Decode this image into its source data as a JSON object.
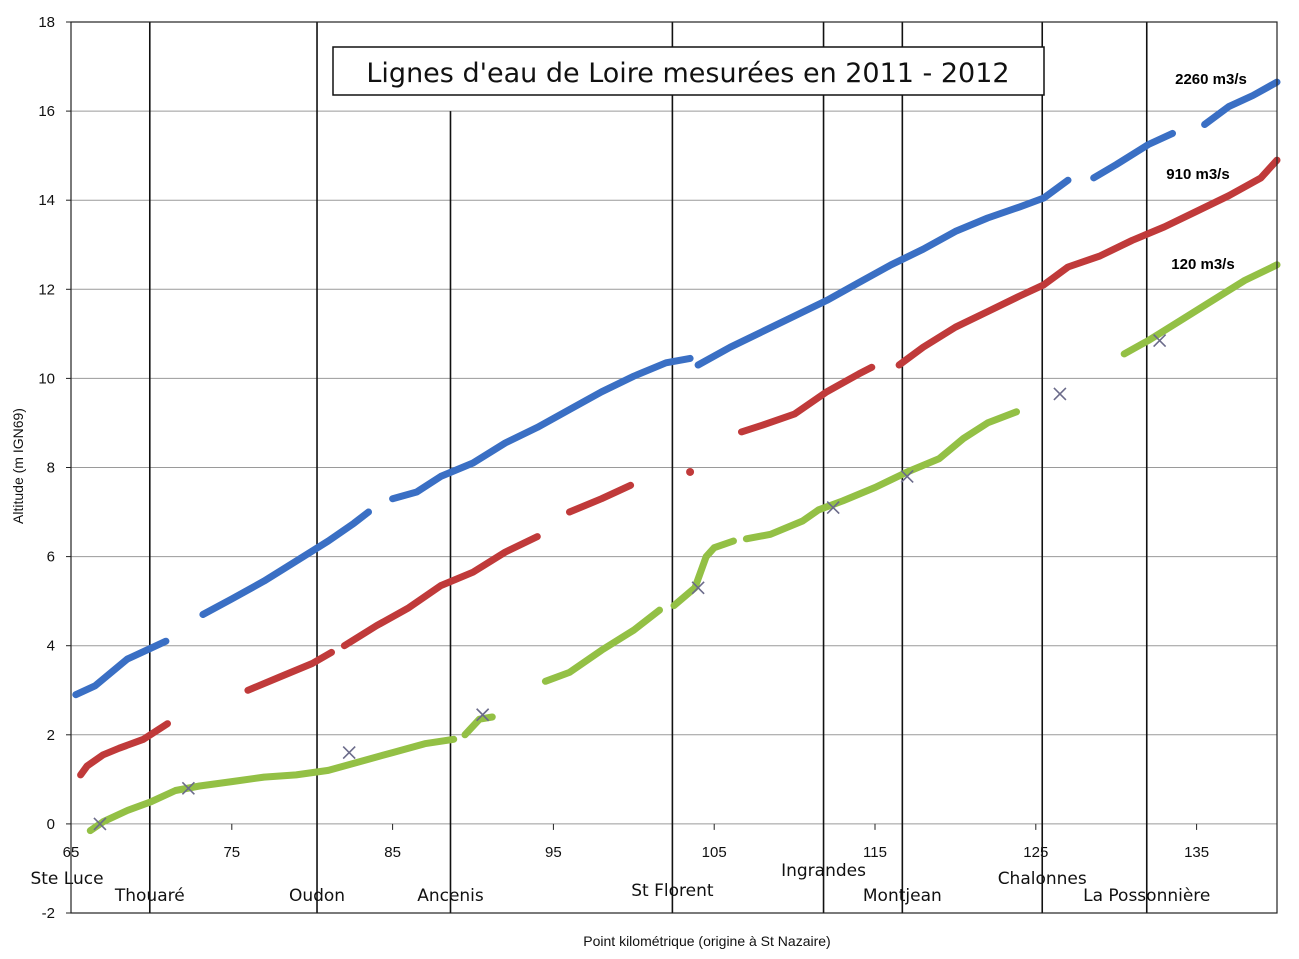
{
  "chart_data": {
    "type": "scatter",
    "title": "Lignes d'eau de Loire mesurées en 2011 - 2012",
    "xlabel": "Point kilométrique  (origine à St Nazaire)",
    "ylabel": "Altitude (m IGN69)",
    "xlim": [
      65,
      140
    ],
    "ylim": [
      -2,
      18
    ],
    "xticks": [
      "65",
      "75",
      "85",
      "95",
      "105",
      "115",
      "125",
      "135"
    ],
    "yticks": [
      "-2",
      "0",
      "2",
      "4",
      "6",
      "8",
      "10",
      "12",
      "14",
      "16",
      "18"
    ],
    "grid": "horizontal",
    "towns": [
      {
        "name": "Ste Luce",
        "x": 65,
        "level": 0
      },
      {
        "name": "Thouaré",
        "x": 69.9,
        "level": 1
      },
      {
        "name": "Oudon",
        "x": 80.3,
        "level": 1
      },
      {
        "name": "Ancenis",
        "x": 88.6,
        "level": 1
      },
      {
        "name": "St Florent",
        "x": 102.4,
        "level": 2
      },
      {
        "name": "Ingrandes",
        "x": 111.8,
        "level": 3
      },
      {
        "name": "Montjean",
        "x": 116.7,
        "level": 1
      },
      {
        "name": "Chalonnes",
        "x": 125.4,
        "level": 0
      },
      {
        "name": "La Possonnière",
        "x": 131.9,
        "level": 1
      }
    ],
    "series": [
      {
        "name": "2260 m3/s",
        "color": "#3a6fc4",
        "segments": [
          [
            [
              65.3,
              2.9
            ],
            [
              66.5,
              3.1
            ],
            [
              67.5,
              3.4
            ],
            [
              68.5,
              3.7
            ],
            [
              70,
              3.95
            ],
            [
              70.9,
              4.1
            ]
          ],
          [
            [
              73.2,
              4.7
            ],
            [
              75,
              5.05
            ],
            [
              77,
              5.45
            ],
            [
              79,
              5.9
            ],
            [
              81,
              6.35
            ],
            [
              82.6,
              6.75
            ],
            [
              83.5,
              7.0
            ]
          ],
          [
            [
              85,
              7.3
            ],
            [
              86.5,
              7.45
            ],
            [
              88,
              7.8
            ],
            [
              90,
              8.1
            ],
            [
              92,
              8.55
            ],
            [
              94,
              8.9
            ],
            [
              96,
              9.3
            ],
            [
              98,
              9.7
            ],
            [
              100,
              10.05
            ],
            [
              102,
              10.35
            ],
            [
              103.5,
              10.45
            ]
          ],
          [
            [
              104,
              10.3
            ],
            [
              106,
              10.7
            ],
            [
              108,
              11.05
            ],
            [
              110,
              11.4
            ],
            [
              112,
              11.75
            ],
            [
              114,
              12.15
            ],
            [
              116,
              12.55
            ],
            [
              118,
              12.9
            ],
            [
              120,
              13.3
            ],
            [
              122,
              13.6
            ],
            [
              124,
              13.85
            ],
            [
              125.5,
              14.05
            ],
            [
              127,
              14.45
            ]
          ],
          [
            [
              128.6,
              14.5
            ],
            [
              130,
              14.8
            ],
            [
              132,
              15.25
            ],
            [
              133.5,
              15.5
            ]
          ],
          [
            [
              135.5,
              15.7
            ],
            [
              137,
              16.1
            ],
            [
              138.5,
              16.35
            ],
            [
              140,
              16.65
            ]
          ]
        ]
      },
      {
        "name": "910 m3/s",
        "color": "#c03a3a",
        "segments": [
          [
            [
              65.6,
              1.1
            ],
            [
              66,
              1.3
            ],
            [
              67,
              1.55
            ],
            [
              68,
              1.7
            ],
            [
              69.5,
              1.9
            ],
            [
              71,
              2.25
            ]
          ],
          [
            [
              76,
              3.0
            ],
            [
              78,
              3.3
            ],
            [
              80,
              3.6
            ],
            [
              81.2,
              3.85
            ]
          ],
          [
            [
              82,
              4.0
            ],
            [
              84,
              4.45
            ],
            [
              86,
              4.85
            ],
            [
              88,
              5.35
            ],
            [
              90,
              5.65
            ],
            [
              92,
              6.1
            ],
            [
              94,
              6.45
            ]
          ],
          [
            [
              96,
              7.0
            ],
            [
              98,
              7.3
            ],
            [
              99.8,
              7.6
            ]
          ],
          [
            [
              103.5,
              7.9
            ]
          ],
          [
            [
              106.7,
              8.8
            ],
            [
              108,
              8.95
            ],
            [
              110,
              9.2
            ],
            [
              112,
              9.7
            ],
            [
              114,
              10.1
            ],
            [
              114.8,
              10.25
            ]
          ],
          [
            [
              116.5,
              10.3
            ],
            [
              118,
              10.7
            ],
            [
              120,
              11.15
            ],
            [
              122,
              11.5
            ],
            [
              124,
              11.85
            ],
            [
              125.5,
              12.1
            ],
            [
              127,
              12.5
            ],
            [
              129,
              12.75
            ],
            [
              131,
              13.1
            ],
            [
              133,
              13.4
            ],
            [
              135,
              13.75
            ],
            [
              137,
              14.1
            ],
            [
              139,
              14.5
            ],
            [
              140,
              14.9
            ]
          ]
        ]
      },
      {
        "name": "120 m3/s",
        "color": "#93c045",
        "segments": [
          [
            [
              66.2,
              -0.15
            ],
            [
              67,
              0.05
            ],
            [
              68.5,
              0.3
            ],
            [
              70,
              0.5
            ],
            [
              71.5,
              0.75
            ],
            [
              73,
              0.85
            ],
            [
              75,
              0.95
            ],
            [
              77,
              1.05
            ],
            [
              79,
              1.1
            ],
            [
              81,
              1.2
            ],
            [
              83,
              1.4
            ],
            [
              85,
              1.6
            ],
            [
              87,
              1.8
            ],
            [
              88.8,
              1.9
            ]
          ],
          [
            [
              89.5,
              2.0
            ],
            [
              90.4,
              2.35
            ],
            [
              91.2,
              2.4
            ]
          ],
          [
            [
              94.5,
              3.2
            ],
            [
              96,
              3.4
            ],
            [
              98,
              3.9
            ],
            [
              100,
              4.35
            ],
            [
              101.6,
              4.8
            ]
          ],
          [
            [
              102.5,
              4.9
            ],
            [
              103.8,
              5.3
            ],
            [
              104.5,
              6.0
            ],
            [
              105,
              6.2
            ],
            [
              106.2,
              6.35
            ]
          ],
          [
            [
              107,
              6.4
            ],
            [
              108.5,
              6.5
            ],
            [
              110.5,
              6.8
            ],
            [
              111.5,
              7.05
            ],
            [
              113,
              7.25
            ],
            [
              115,
              7.55
            ],
            [
              117,
              7.9
            ],
            [
              119,
              8.2
            ],
            [
              120.5,
              8.65
            ],
            [
              122,
              9.0
            ],
            [
              123.8,
              9.25
            ]
          ],
          [
            [
              130.5,
              10.55
            ],
            [
              132,
              10.85
            ],
            [
              134,
              11.3
            ],
            [
              136,
              11.75
            ],
            [
              138,
              12.2
            ],
            [
              140,
              12.55
            ]
          ]
        ]
      }
    ],
    "markers": [
      {
        "x": 66.8,
        "y": 0.0
      },
      {
        "x": 72.3,
        "y": 0.8
      },
      {
        "x": 82.3,
        "y": 1.6
      },
      {
        "x": 90.6,
        "y": 2.45
      },
      {
        "x": 104.0,
        "y": 5.3
      },
      {
        "x": 112.4,
        "y": 7.1
      },
      {
        "x": 117.0,
        "y": 7.8
      },
      {
        "x": 126.5,
        "y": 9.65
      },
      {
        "x": 132.7,
        "y": 10.85
      }
    ]
  }
}
